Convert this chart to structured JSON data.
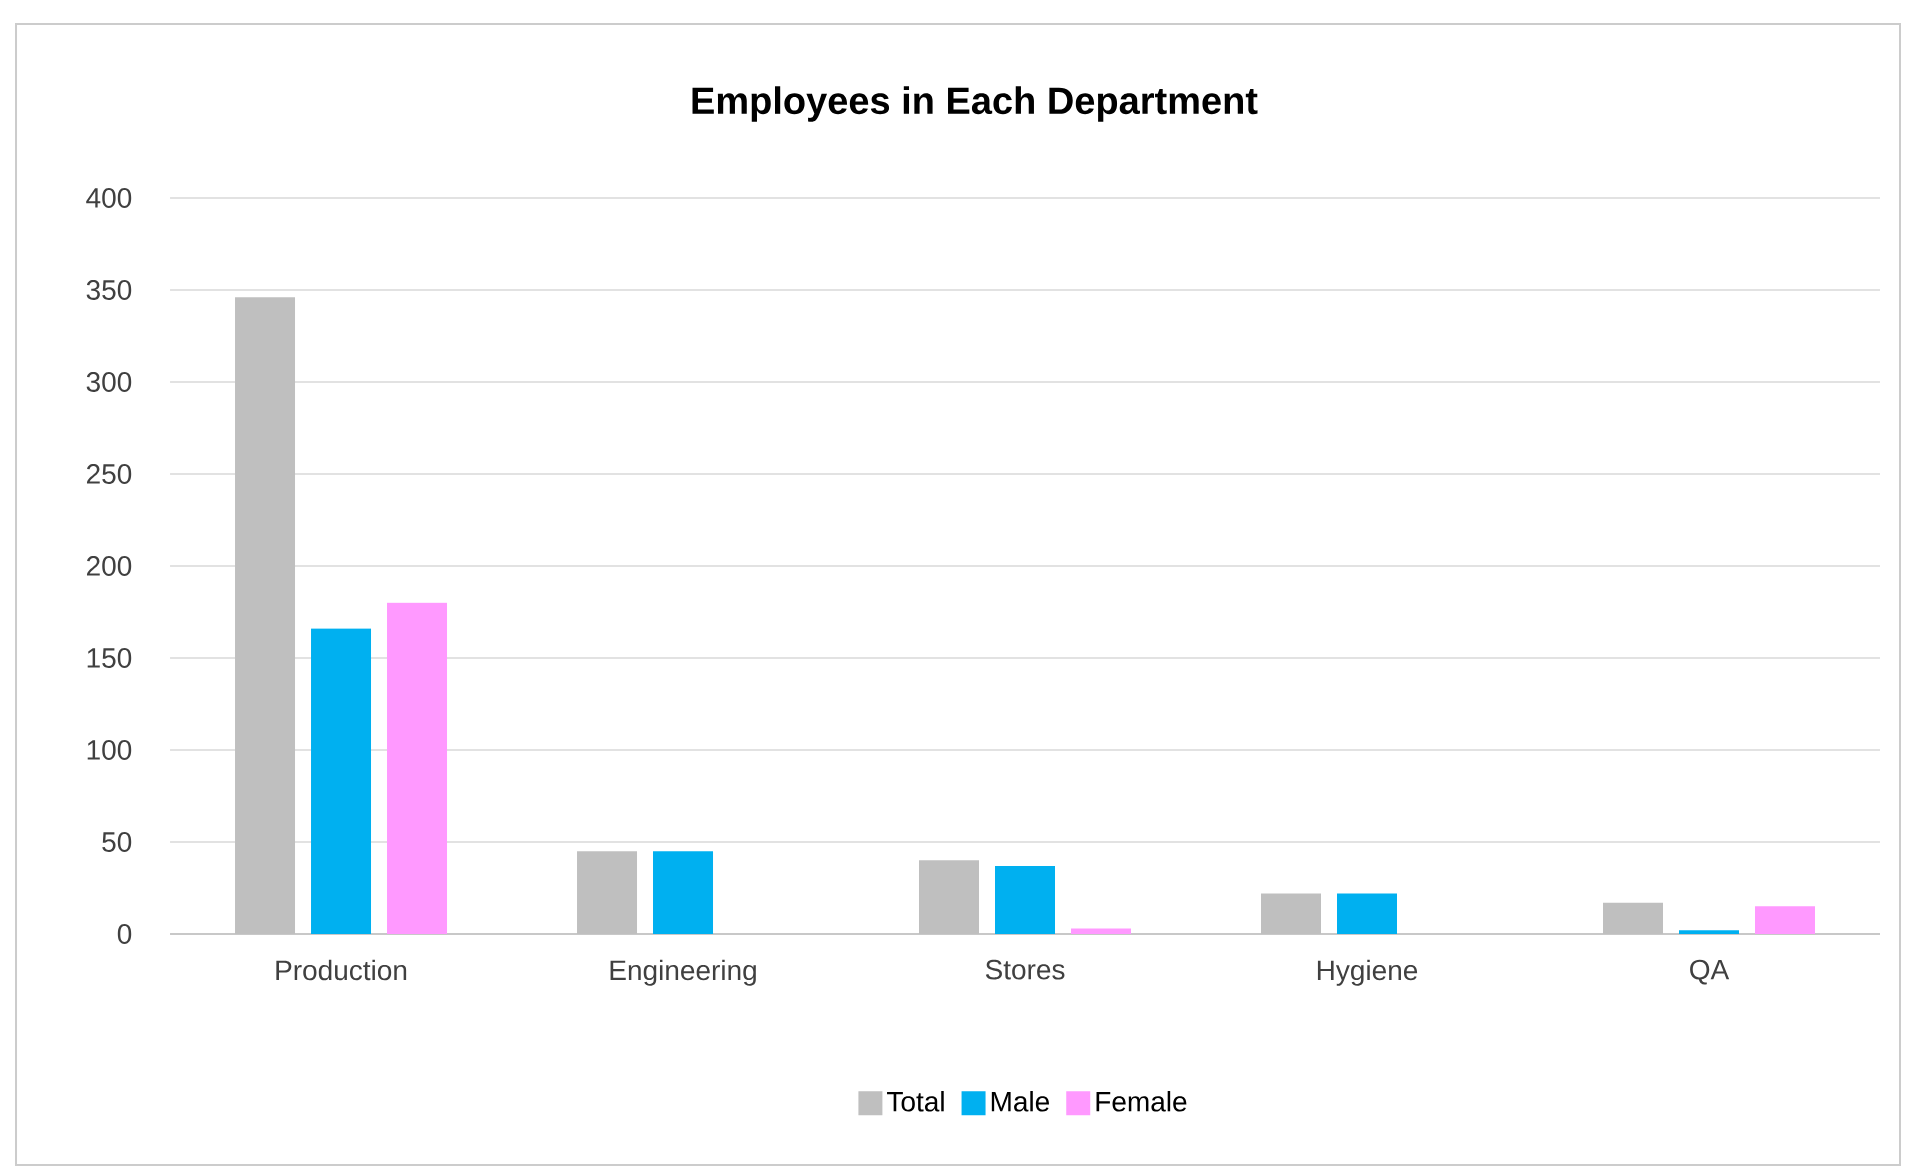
{
  "chart_data": {
    "type": "bar",
    "title": "Employees in Each Department",
    "categories": [
      "Production",
      "Engineering",
      "Stores",
      "Hygiene",
      "QA"
    ],
    "series": [
      {
        "name": "Total",
        "color": "#bfbfbf",
        "values": [
          346,
          45,
          40,
          22,
          17
        ]
      },
      {
        "name": "Male",
        "color": "#00b0f0",
        "values": [
          166,
          45,
          37,
          22,
          2
        ]
      },
      {
        "name": "Female",
        "color": "#ff99ff",
        "values": [
          180,
          0,
          3,
          0,
          15
        ]
      }
    ],
    "ylim": [
      0,
      400
    ],
    "yticks": [
      0,
      50,
      100,
      150,
      200,
      250,
      300,
      350,
      400
    ],
    "grid": "y",
    "legend": "bottom"
  }
}
